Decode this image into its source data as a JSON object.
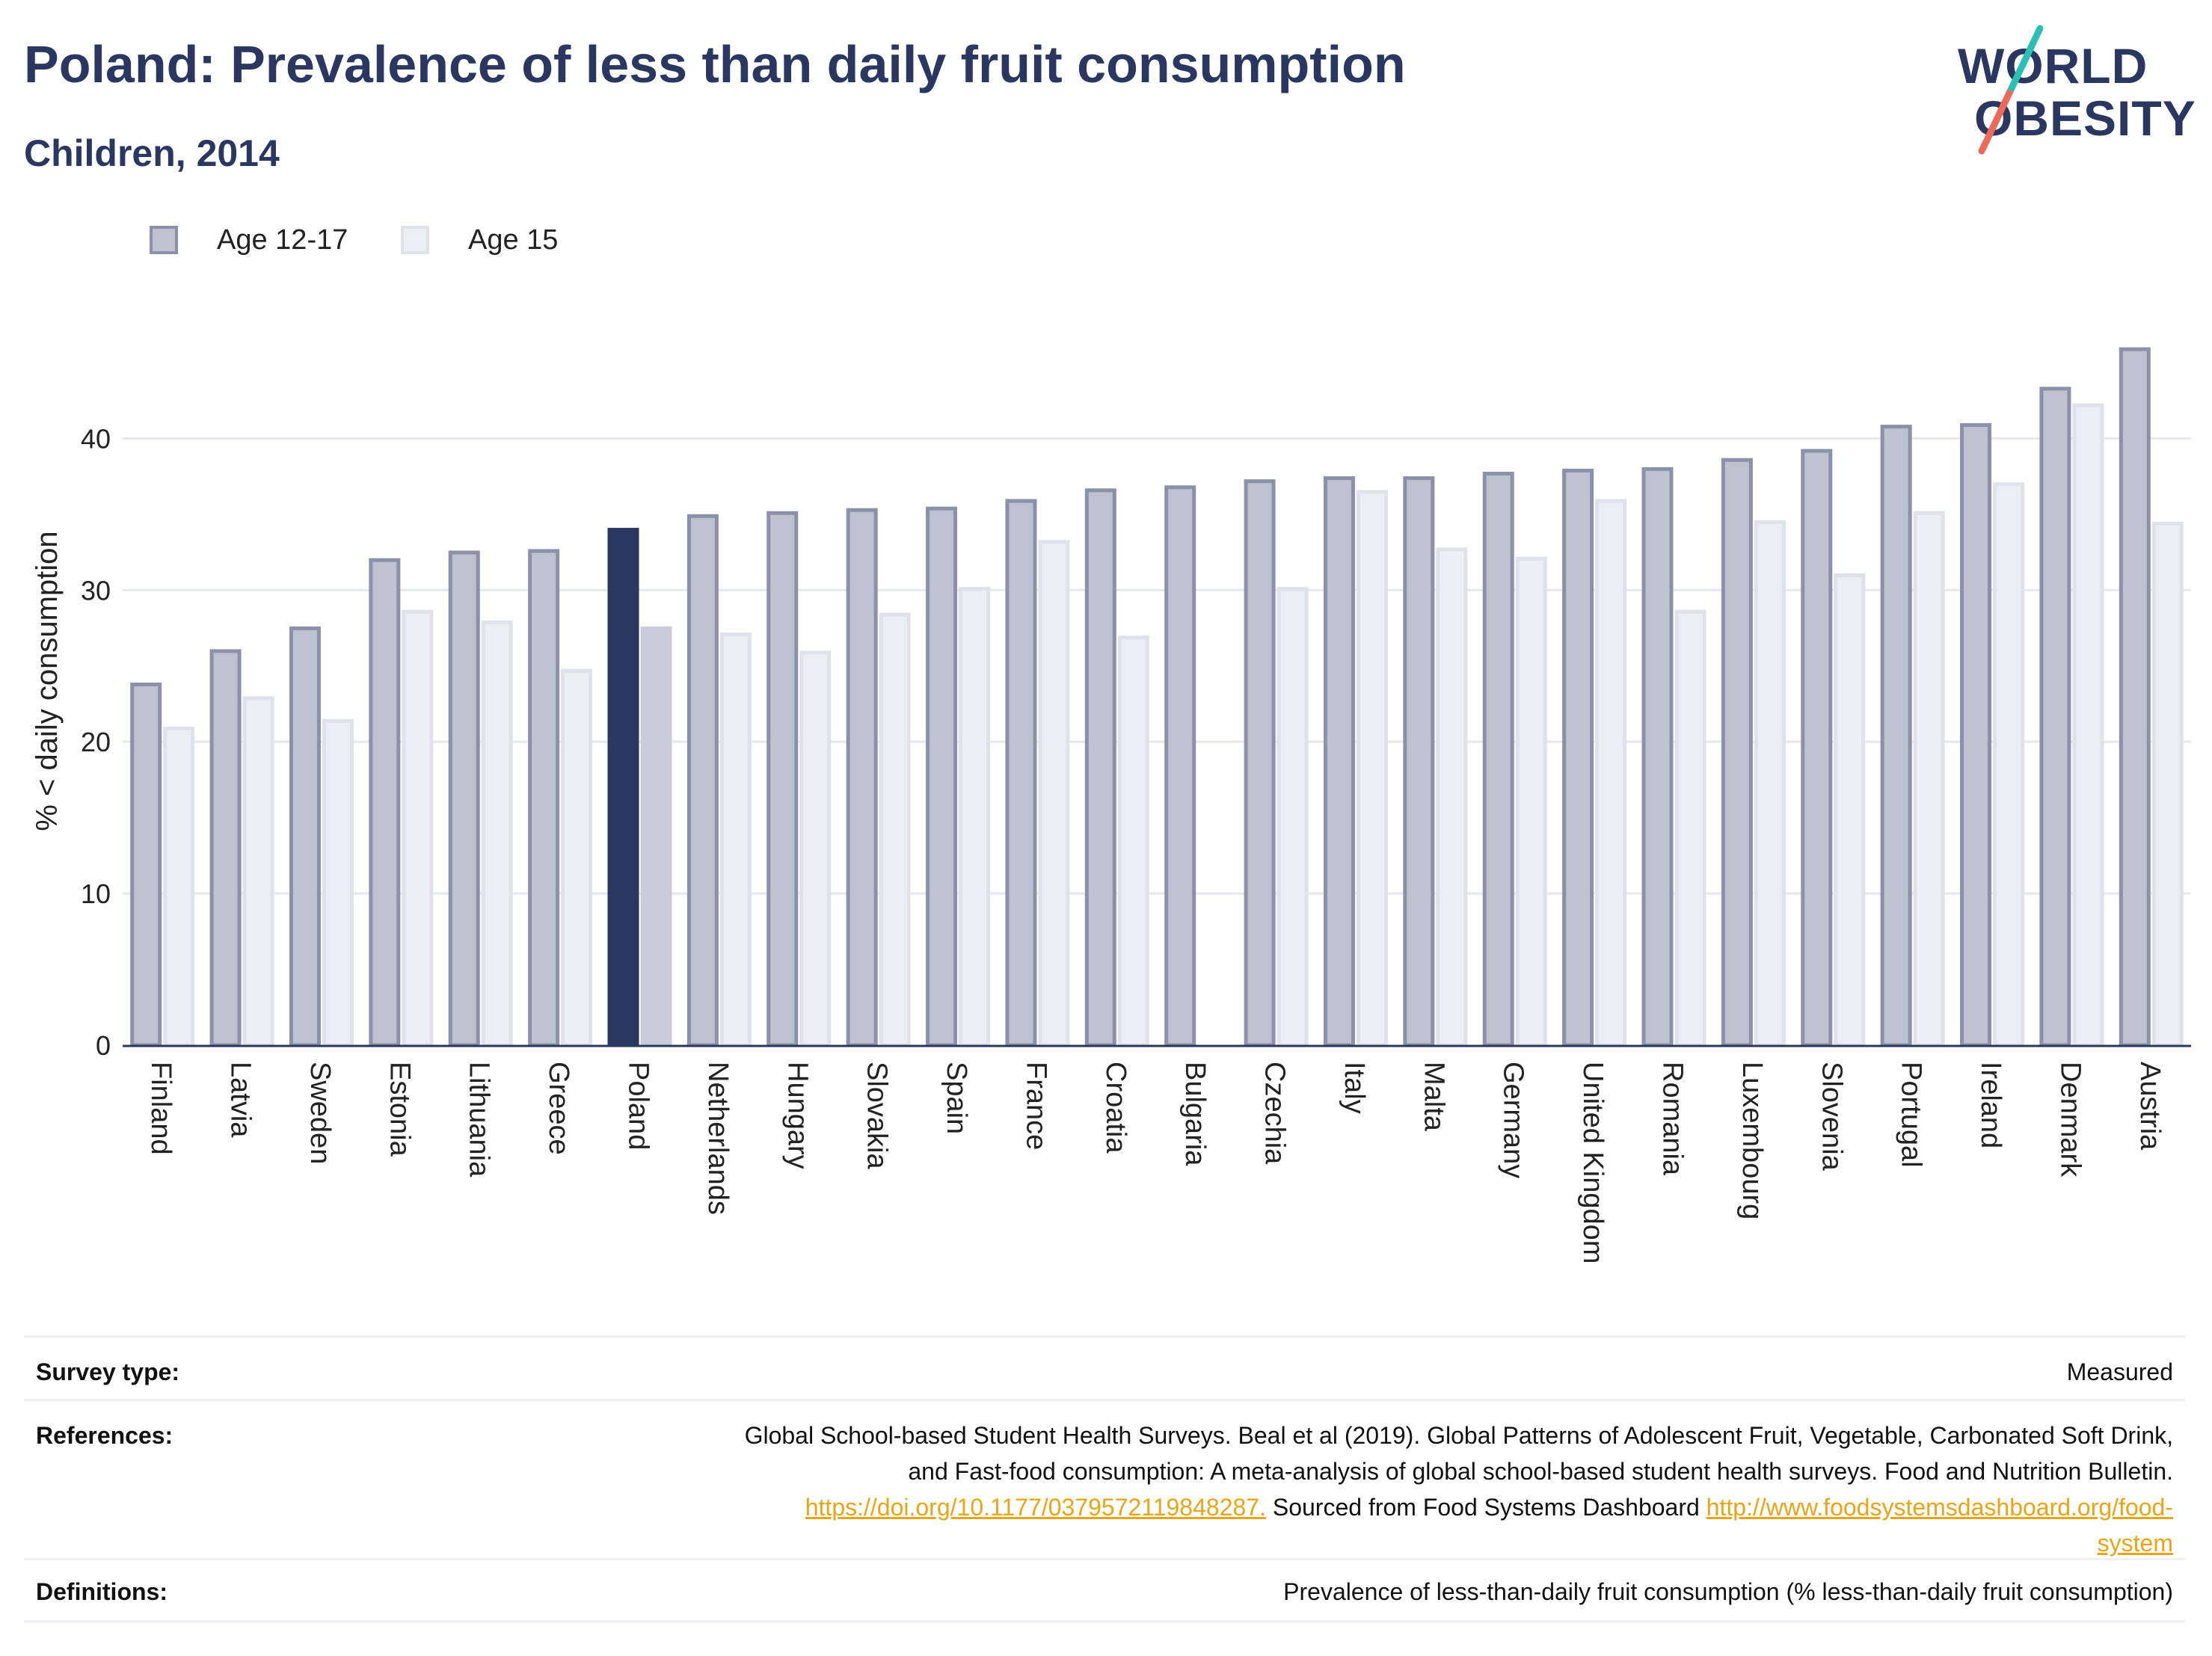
{
  "header": {
    "title": "Poland: Prevalence of less than daily fruit consumption",
    "subtitle": "Children, 2014"
  },
  "logo": {
    "line1": "WORLD",
    "line2": "OBESITY",
    "icon": "world-obesity-logo-slash"
  },
  "legend": [
    {
      "label": "Age 12-17",
      "fill": "#bdc2d1",
      "stroke": "#8a91a8"
    },
    {
      "label": "Age 15",
      "fill": "#eceef3",
      "stroke": "#dfe2ea"
    }
  ],
  "colors": {
    "highlight_primary": "#2a3760",
    "highlight_secondary": "#c8ccd8",
    "series1_fill": "#bdc2d1",
    "series1_stroke": "#8a91a8",
    "series2_fill": "#eceef3",
    "series2_stroke": "#dfe2ea",
    "gridline": "#e6e8ee",
    "axis": "#2a3760",
    "link": "#e8a517"
  },
  "chart_data": {
    "type": "bar",
    "title": "Poland: Prevalence of less than daily fruit consumption",
    "subtitle": "Children, 2014",
    "ylabel": "% < daily consumption",
    "xlabel": "",
    "ylim": [
      0,
      48
    ],
    "yticks": [
      0,
      10,
      20,
      30,
      40
    ],
    "grid": true,
    "legend_position": "top-left",
    "highlight_category": "Poland",
    "categories": [
      "Finland",
      "Latvia",
      "Sweden",
      "Estonia",
      "Lithuania",
      "Greece",
      "Poland",
      "Netherlands",
      "Hungary",
      "Slovakia",
      "Spain",
      "France",
      "Croatia",
      "Bulgaria",
      "Czechia",
      "Italy",
      "Malta",
      "Germany",
      "United Kingdom",
      "Romania",
      "Luxembourg",
      "Slovenia",
      "Portugal",
      "Ireland",
      "Denmark",
      "Austria"
    ],
    "series": [
      {
        "name": "Age 12-17",
        "values": [
          23.9,
          26.1,
          27.6,
          32.1,
          32.6,
          32.7,
          34.1,
          35.0,
          35.2,
          35.4,
          35.5,
          36.0,
          36.7,
          36.9,
          37.3,
          37.5,
          37.5,
          37.8,
          38.0,
          38.1,
          38.7,
          39.3,
          40.9,
          41.0,
          43.4,
          46.0
        ]
      },
      {
        "name": "Age 15",
        "values": [
          21.0,
          23.0,
          21.5,
          28.7,
          28.0,
          24.8,
          27.6,
          27.2,
          26.0,
          28.5,
          30.2,
          33.3,
          27.0,
          null,
          30.2,
          36.6,
          32.8,
          32.2,
          36.0,
          28.7,
          34.6,
          31.1,
          35.2,
          37.1,
          42.3,
          34.5
        ]
      }
    ]
  },
  "footer": {
    "survey_type_label": "Survey type:",
    "survey_type_value": "Measured",
    "references_label": "References:",
    "references_line1": "Global School-based Student Health Surveys. Beal et al (2019). Global Patterns of Adolescent Fruit, Vegetable, Carbonated Soft Drink,",
    "references_line2": "and Fast-food consumption: A meta-analysis of global school-based student health surveys. Food and Nutrition Bulletin.",
    "references_link1": "https://doi.org/10.1177/0379572119848287.",
    "references_mid": " Sourced from Food Systems Dashboard ",
    "references_link2a": "http://www.foodsystemsdashboard.org/food-",
    "references_link2b": "system",
    "definitions_label": "Definitions:",
    "definitions_value": "Prevalence of less-than-daily fruit consumption (% less-than-daily fruit consumption)"
  }
}
